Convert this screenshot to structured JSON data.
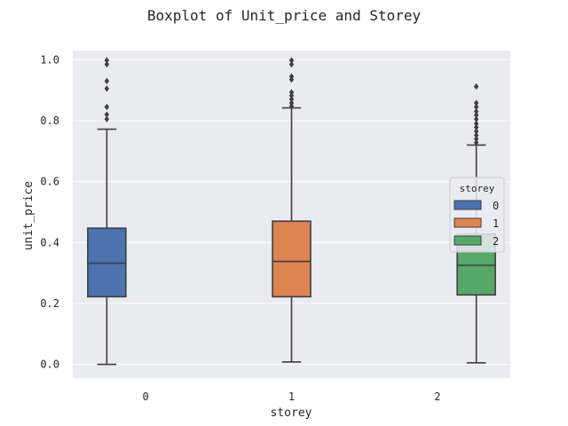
{
  "chart_data": {
    "type": "boxplot",
    "title": "Boxplot of Unit_price and Storey",
    "xlabel": "storey",
    "ylabel": "unit_price",
    "ylim": [
      -0.045,
      1.03
    ],
    "yticks": [
      "0.0",
      "0.2",
      "0.4",
      "0.6",
      "0.8",
      "1.0"
    ],
    "categories": [
      "0",
      "1",
      "2"
    ],
    "grid": true,
    "legend": {
      "title": "storey",
      "position": "right",
      "entries": [
        "0",
        "1",
        "2"
      ]
    },
    "series": [
      {
        "name": "0",
        "color": "#4c72b0",
        "category": "0",
        "min": 0.0,
        "q1": 0.222,
        "median": 0.332,
        "q3": 0.447,
        "max": 0.772,
        "outliers": [
          0.805,
          0.82,
          0.845,
          0.905,
          0.93,
          0.985,
          0.998
        ]
      },
      {
        "name": "1",
        "color": "#dd8452",
        "category": "1",
        "min": 0.008,
        "q1": 0.222,
        "median": 0.338,
        "q3": 0.47,
        "max": 0.842,
        "outliers": [
          0.848,
          0.858,
          0.87,
          0.882,
          0.893,
          0.935,
          0.945,
          0.985,
          0.998
        ]
      },
      {
        "name": "2",
        "color": "#55a868",
        "category": "2",
        "min": 0.005,
        "q1": 0.228,
        "median": 0.325,
        "q3": 0.428,
        "max": 0.72,
        "outliers": [
          0.728,
          0.74,
          0.752,
          0.765,
          0.778,
          0.79,
          0.805,
          0.818,
          0.83,
          0.845,
          0.858,
          0.912
        ]
      }
    ]
  },
  "colors": {
    "plot_background": "#eaeaf2",
    "grid": "#ffffff",
    "box_edge": "#3f3f3f",
    "outlier": "#3f3f3f"
  }
}
